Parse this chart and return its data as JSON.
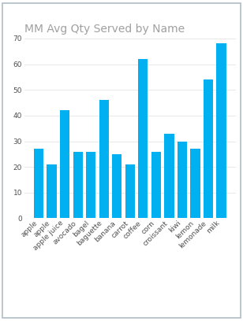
{
  "categories": [
    "apple",
    "apple",
    "apple juice",
    "avocado",
    "bagel",
    "baguette",
    "banana",
    "carrot",
    "coffee",
    "corn",
    "croissant",
    "kiwi",
    "lemon",
    "lemonade",
    "milk"
  ],
  "values": [
    27,
    21,
    42,
    26,
    26,
    46,
    25,
    21,
    62,
    26,
    33,
    30,
    27,
    54,
    68
  ],
  "bar_color": "#00B0F0",
  "title": "MM Avg Qty Served by Name",
  "title_color": "#A0A0A0",
  "title_fontsize": 10,
  "ylim": [
    0,
    70
  ],
  "yticks": [
    0,
    10,
    20,
    30,
    40,
    50,
    60,
    70
  ],
  "background_color": "#FFFFFF",
  "border_color": "#B0BEC5",
  "grid_color": "#E8E8E8",
  "tick_label_color": "#505050",
  "tick_label_fontsize": 6.5,
  "ylabel_color": "#505050",
  "ylabel_fontsize": 6.5
}
